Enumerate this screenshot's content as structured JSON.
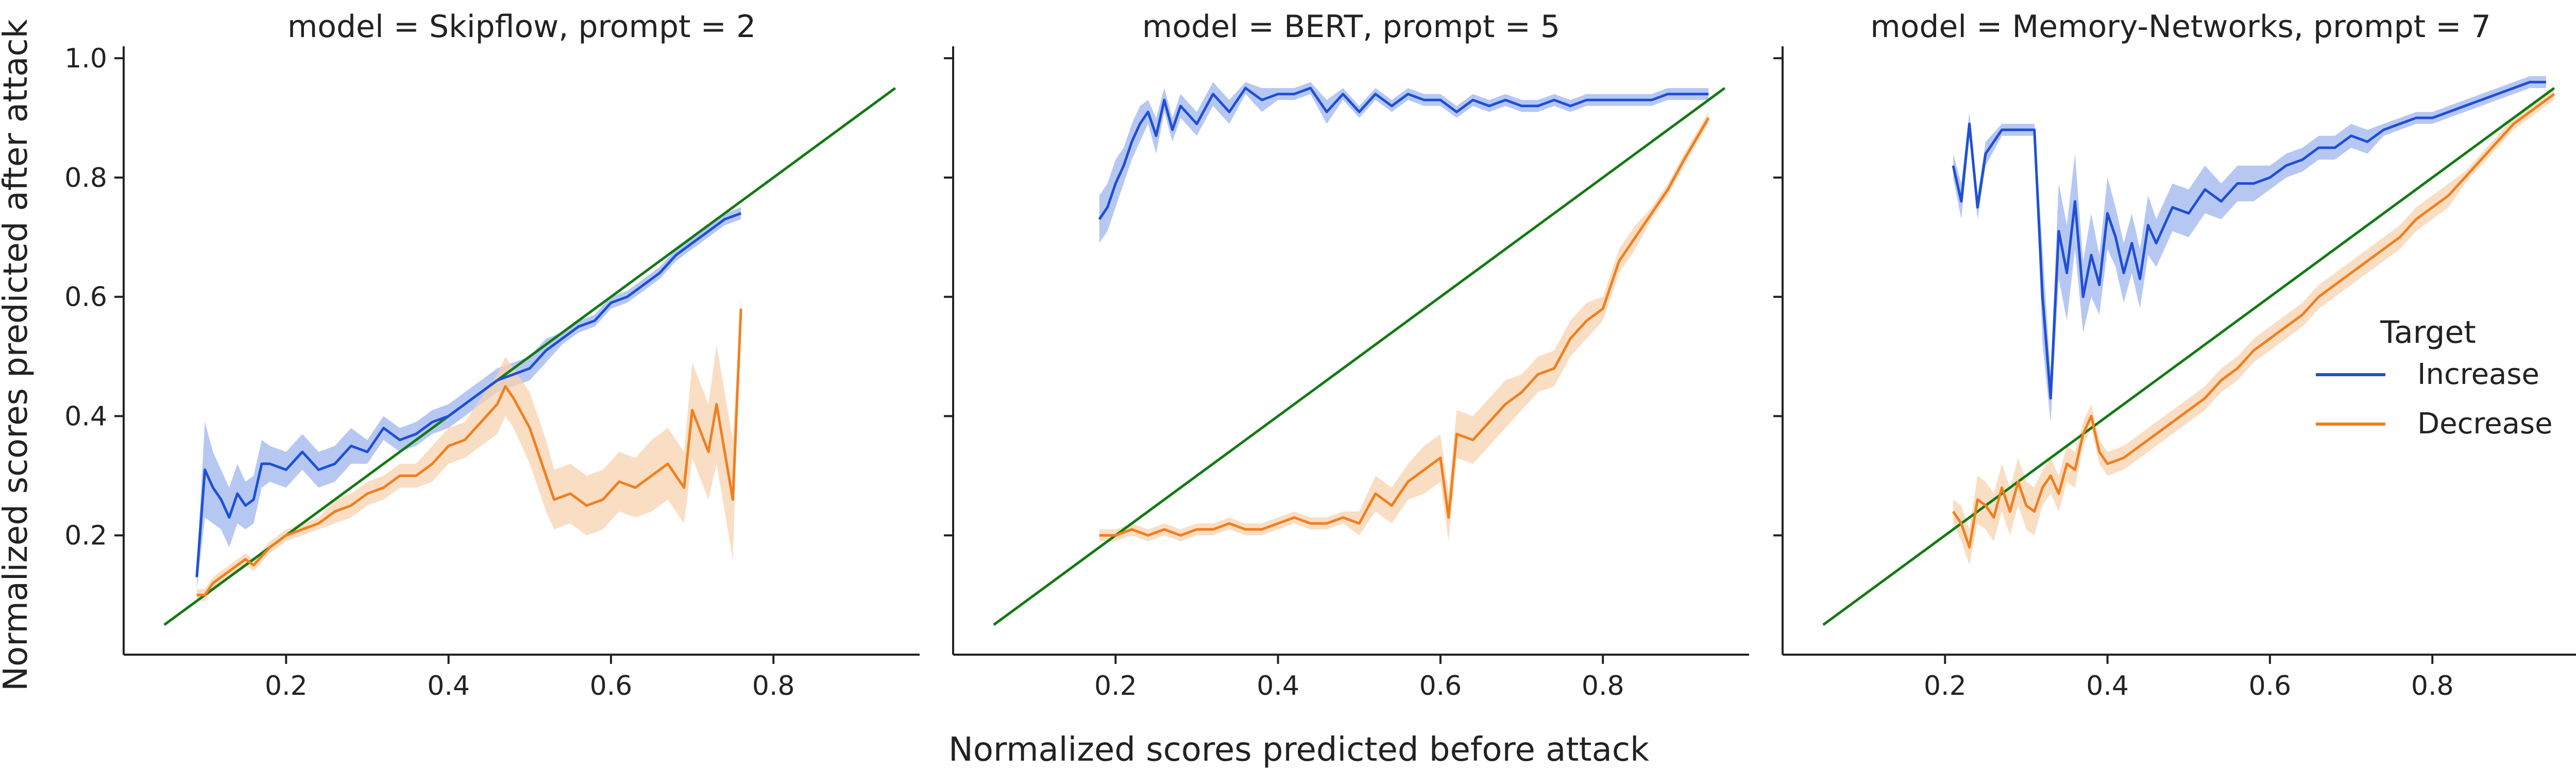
{
  "chart_data": {
    "type": "line",
    "xlabel": "Normalized scores predicted before attack",
    "ylabel": "Normalized scores predicted after attack",
    "xlim": [
      0.0,
      0.98
    ],
    "ylim": [
      0.0,
      1.02
    ],
    "xticks": [
      0.2,
      0.4,
      0.6,
      0.8
    ],
    "xtick_labels": [
      "0.2",
      "0.4",
      "0.6",
      "0.8"
    ],
    "yticks": [
      0.2,
      0.4,
      0.6,
      0.8,
      1.0
    ],
    "ytick_labels": [
      "0.2",
      "0.4",
      "0.6",
      "0.8",
      "1.0"
    ],
    "grid": false,
    "legend": {
      "title": "Target",
      "placement": "right-middle of third panel",
      "entries": [
        "Increase",
        "Decrease"
      ]
    },
    "colors": {
      "Increase": "#1f4fd6",
      "Decrease": "#f07f1e",
      "Increase_band": "#9db5ee",
      "Decrease_band": "#f8d3b0",
      "diagonal": "#137a13",
      "axis": "#222222"
    },
    "diagonal_line": {
      "x": [
        0.05,
        0.95
      ],
      "y": [
        0.05,
        0.95
      ]
    },
    "panels": [
      {
        "title": "model = Skipflow, prompt = 2",
        "series": [
          {
            "name": "Increase",
            "x": [
              0.09,
              0.1,
              0.11,
              0.12,
              0.13,
              0.14,
              0.15,
              0.16,
              0.17,
              0.18,
              0.2,
              0.22,
              0.24,
              0.26,
              0.28,
              0.3,
              0.32,
              0.34,
              0.36,
              0.38,
              0.4,
              0.42,
              0.44,
              0.46,
              0.48,
              0.5,
              0.52,
              0.54,
              0.56,
              0.58,
              0.6,
              0.62,
              0.64,
              0.66,
              0.68,
              0.7,
              0.72,
              0.74,
              0.76
            ],
            "y": [
              0.13,
              0.31,
              0.28,
              0.26,
              0.23,
              0.27,
              0.25,
              0.26,
              0.32,
              0.32,
              0.31,
              0.34,
              0.31,
              0.32,
              0.35,
              0.34,
              0.38,
              0.36,
              0.37,
              0.39,
              0.4,
              0.42,
              0.44,
              0.46,
              0.47,
              0.48,
              0.51,
              0.53,
              0.55,
              0.56,
              0.59,
              0.6,
              0.62,
              0.64,
              0.67,
              0.69,
              0.71,
              0.73,
              0.74
            ],
            "ci_halfwidth": [
              0.02,
              0.08,
              0.06,
              0.05,
              0.05,
              0.05,
              0.04,
              0.04,
              0.04,
              0.03,
              0.03,
              0.03,
              0.03,
              0.03,
              0.03,
              0.02,
              0.02,
              0.02,
              0.02,
              0.02,
              0.02,
              0.02,
              0.02,
              0.02,
              0.02,
              0.02,
              0.02,
              0.01,
              0.01,
              0.01,
              0.01,
              0.01,
              0.01,
              0.01,
              0.01,
              0.01,
              0.01,
              0.01,
              0.01
            ]
          },
          {
            "name": "Decrease",
            "x": [
              0.09,
              0.1,
              0.11,
              0.12,
              0.13,
              0.14,
              0.15,
              0.16,
              0.18,
              0.2,
              0.22,
              0.24,
              0.26,
              0.28,
              0.3,
              0.32,
              0.34,
              0.36,
              0.38,
              0.4,
              0.42,
              0.44,
              0.46,
              0.47,
              0.48,
              0.5,
              0.52,
              0.53,
              0.55,
              0.57,
              0.59,
              0.61,
              0.63,
              0.65,
              0.67,
              0.69,
              0.7,
              0.72,
              0.73,
              0.75,
              0.76
            ],
            "y": [
              0.1,
              0.1,
              0.12,
              0.13,
              0.14,
              0.15,
              0.16,
              0.15,
              0.18,
              0.2,
              0.21,
              0.22,
              0.24,
              0.25,
              0.27,
              0.28,
              0.3,
              0.3,
              0.32,
              0.35,
              0.36,
              0.39,
              0.42,
              0.45,
              0.43,
              0.38,
              0.3,
              0.26,
              0.27,
              0.25,
              0.26,
              0.29,
              0.28,
              0.3,
              0.32,
              0.28,
              0.41,
              0.34,
              0.42,
              0.26,
              0.58
            ],
            "ci_halfwidth": [
              0.01,
              0.01,
              0.01,
              0.01,
              0.01,
              0.01,
              0.01,
              0.01,
              0.01,
              0.01,
              0.01,
              0.01,
              0.02,
              0.02,
              0.02,
              0.02,
              0.02,
              0.02,
              0.03,
              0.03,
              0.03,
              0.04,
              0.05,
              0.05,
              0.05,
              0.06,
              0.06,
              0.05,
              0.05,
              0.05,
              0.05,
              0.05,
              0.05,
              0.06,
              0.06,
              0.06,
              0.08,
              0.08,
              0.1,
              0.1,
              0.02
            ]
          }
        ]
      },
      {
        "title": "model = BERT, prompt = 5",
        "series": [
          {
            "name": "Increase",
            "x": [
              0.18,
              0.19,
              0.2,
              0.21,
              0.22,
              0.23,
              0.24,
              0.25,
              0.26,
              0.27,
              0.28,
              0.3,
              0.32,
              0.34,
              0.36,
              0.38,
              0.4,
              0.42,
              0.44,
              0.46,
              0.48,
              0.5,
              0.52,
              0.54,
              0.56,
              0.58,
              0.6,
              0.62,
              0.64,
              0.66,
              0.68,
              0.7,
              0.72,
              0.74,
              0.76,
              0.78,
              0.8,
              0.82,
              0.84,
              0.86,
              0.88,
              0.9,
              0.93
            ],
            "y": [
              0.73,
              0.75,
              0.79,
              0.82,
              0.86,
              0.89,
              0.91,
              0.87,
              0.93,
              0.88,
              0.92,
              0.89,
              0.94,
              0.91,
              0.95,
              0.93,
              0.94,
              0.94,
              0.95,
              0.91,
              0.94,
              0.91,
              0.94,
              0.92,
              0.94,
              0.93,
              0.93,
              0.91,
              0.93,
              0.92,
              0.93,
              0.92,
              0.92,
              0.93,
              0.92,
              0.93,
              0.93,
              0.93,
              0.93,
              0.93,
              0.94,
              0.94,
              0.94
            ],
            "ci_halfwidth": [
              0.04,
              0.04,
              0.04,
              0.03,
              0.03,
              0.03,
              0.02,
              0.03,
              0.02,
              0.02,
              0.02,
              0.02,
              0.02,
              0.02,
              0.01,
              0.02,
              0.01,
              0.01,
              0.01,
              0.02,
              0.01,
              0.01,
              0.01,
              0.01,
              0.01,
              0.01,
              0.01,
              0.01,
              0.01,
              0.01,
              0.01,
              0.01,
              0.01,
              0.01,
              0.01,
              0.01,
              0.01,
              0.01,
              0.01,
              0.01,
              0.01,
              0.01,
              0.01
            ]
          },
          {
            "name": "Decrease",
            "x": [
              0.18,
              0.2,
              0.22,
              0.24,
              0.26,
              0.28,
              0.3,
              0.32,
              0.34,
              0.36,
              0.38,
              0.4,
              0.42,
              0.44,
              0.46,
              0.48,
              0.5,
              0.52,
              0.54,
              0.56,
              0.58,
              0.6,
              0.61,
              0.62,
              0.64,
              0.66,
              0.68,
              0.7,
              0.72,
              0.74,
              0.76,
              0.78,
              0.8,
              0.82,
              0.84,
              0.86,
              0.88,
              0.9,
              0.93
            ],
            "y": [
              0.2,
              0.2,
              0.21,
              0.2,
              0.21,
              0.2,
              0.21,
              0.21,
              0.22,
              0.21,
              0.21,
              0.22,
              0.23,
              0.22,
              0.22,
              0.23,
              0.22,
              0.27,
              0.25,
              0.29,
              0.31,
              0.33,
              0.23,
              0.37,
              0.36,
              0.39,
              0.42,
              0.44,
              0.47,
              0.48,
              0.53,
              0.56,
              0.58,
              0.66,
              0.7,
              0.74,
              0.78,
              0.83,
              0.9
            ],
            "ci_halfwidth": [
              0.01,
              0.01,
              0.01,
              0.01,
              0.01,
              0.01,
              0.01,
              0.01,
              0.01,
              0.01,
              0.01,
              0.01,
              0.01,
              0.01,
              0.01,
              0.01,
              0.02,
              0.03,
              0.03,
              0.03,
              0.04,
              0.04,
              0.04,
              0.04,
              0.04,
              0.04,
              0.04,
              0.03,
              0.03,
              0.03,
              0.03,
              0.03,
              0.02,
              0.02,
              0.02,
              0.01,
              0.01,
              0.01,
              0.01
            ]
          }
        ]
      },
      {
        "title": "model = Memory-Networks, prompt = 7",
        "series": [
          {
            "name": "Increase",
            "x": [
              0.21,
              0.22,
              0.23,
              0.24,
              0.25,
              0.27,
              0.29,
              0.31,
              0.32,
              0.33,
              0.34,
              0.35,
              0.36,
              0.37,
              0.38,
              0.39,
              0.4,
              0.41,
              0.42,
              0.43,
              0.44,
              0.45,
              0.46,
              0.48,
              0.5,
              0.52,
              0.54,
              0.56,
              0.58,
              0.6,
              0.62,
              0.64,
              0.66,
              0.68,
              0.7,
              0.72,
              0.74,
              0.76,
              0.78,
              0.8,
              0.82,
              0.84,
              0.86,
              0.88,
              0.9,
              0.92,
              0.94
            ],
            "y": [
              0.82,
              0.76,
              0.89,
              0.75,
              0.84,
              0.88,
              0.88,
              0.88,
              0.6,
              0.43,
              0.71,
              0.64,
              0.76,
              0.6,
              0.67,
              0.62,
              0.74,
              0.7,
              0.64,
              0.69,
              0.63,
              0.72,
              0.69,
              0.75,
              0.74,
              0.78,
              0.76,
              0.79,
              0.79,
              0.8,
              0.82,
              0.83,
              0.85,
              0.85,
              0.87,
              0.86,
              0.88,
              0.89,
              0.9,
              0.9,
              0.91,
              0.92,
              0.93,
              0.94,
              0.95,
              0.96,
              0.96
            ],
            "ci_halfwidth": [
              0.02,
              0.03,
              0.02,
              0.02,
              0.02,
              0.01,
              0.01,
              0.01,
              0.08,
              0.04,
              0.08,
              0.08,
              0.08,
              0.06,
              0.07,
              0.05,
              0.06,
              0.05,
              0.05,
              0.05,
              0.05,
              0.05,
              0.04,
              0.04,
              0.04,
              0.04,
              0.03,
              0.03,
              0.03,
              0.02,
              0.02,
              0.02,
              0.02,
              0.02,
              0.02,
              0.02,
              0.01,
              0.01,
              0.01,
              0.01,
              0.01,
              0.01,
              0.01,
              0.01,
              0.01,
              0.01,
              0.01
            ]
          },
          {
            "name": "Decrease",
            "x": [
              0.21,
              0.22,
              0.23,
              0.24,
              0.25,
              0.26,
              0.27,
              0.28,
              0.29,
              0.3,
              0.31,
              0.32,
              0.33,
              0.34,
              0.35,
              0.36,
              0.37,
              0.38,
              0.39,
              0.4,
              0.42,
              0.44,
              0.46,
              0.48,
              0.5,
              0.52,
              0.54,
              0.56,
              0.58,
              0.6,
              0.62,
              0.64,
              0.66,
              0.68,
              0.7,
              0.72,
              0.74,
              0.76,
              0.78,
              0.8,
              0.82,
              0.84,
              0.86,
              0.88,
              0.9,
              0.92,
              0.95
            ],
            "y": [
              0.24,
              0.22,
              0.18,
              0.26,
              0.25,
              0.23,
              0.28,
              0.24,
              0.29,
              0.25,
              0.24,
              0.28,
              0.3,
              0.27,
              0.32,
              0.31,
              0.37,
              0.4,
              0.34,
              0.32,
              0.33,
              0.35,
              0.37,
              0.39,
              0.41,
              0.43,
              0.46,
              0.48,
              0.51,
              0.53,
              0.55,
              0.57,
              0.6,
              0.62,
              0.64,
              0.66,
              0.68,
              0.7,
              0.73,
              0.75,
              0.77,
              0.8,
              0.83,
              0.86,
              0.89,
              0.91,
              0.94
            ],
            "ci_halfwidth": [
              0.02,
              0.03,
              0.03,
              0.04,
              0.04,
              0.04,
              0.04,
              0.04,
              0.04,
              0.04,
              0.04,
              0.03,
              0.03,
              0.03,
              0.03,
              0.03,
              0.02,
              0.02,
              0.02,
              0.02,
              0.02,
              0.02,
              0.02,
              0.02,
              0.02,
              0.02,
              0.02,
              0.02,
              0.02,
              0.02,
              0.02,
              0.02,
              0.02,
              0.02,
              0.02,
              0.02,
              0.02,
              0.02,
              0.02,
              0.02,
              0.02,
              0.01,
              0.01,
              0.01,
              0.01,
              0.01,
              0.01
            ]
          }
        ]
      }
    ]
  }
}
